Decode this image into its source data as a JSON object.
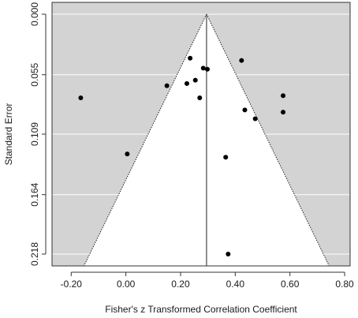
{
  "chart_data": {
    "type": "scatter",
    "subtype": "funnel-plot",
    "xlabel": "Fisher's z Transformed Correlation Coefficient",
    "ylabel": "Standard Error",
    "xlim": [
      -0.27,
      0.82
    ],
    "ylim": [
      0.0,
      0.218
    ],
    "y_reversed": true,
    "x_ticks": [
      -0.2,
      0.0,
      0.2,
      0.4,
      0.6,
      0.8
    ],
    "x_tick_labels": [
      "-0.20",
      "0.00",
      "0.20",
      "0.40",
      "0.60",
      "0.80"
    ],
    "y_ticks": [
      0.0,
      0.055,
      0.109,
      0.164,
      0.218
    ],
    "y_tick_labels": [
      "0.000",
      "0.055",
      "0.109",
      "0.164",
      "0.218"
    ],
    "grid": true,
    "background": "#d3d3d3",
    "funnel_fill": "#ffffff",
    "summary_effect": 0.295,
    "funnel_multiplier": 1.96,
    "points": [
      {
        "x": -0.165,
        "y": 0.076
      },
      {
        "x": 0.005,
        "y": 0.127
      },
      {
        "x": 0.15,
        "y": 0.065
      },
      {
        "x": 0.223,
        "y": 0.063
      },
      {
        "x": 0.235,
        "y": 0.04
      },
      {
        "x": 0.254,
        "y": 0.06
      },
      {
        "x": 0.27,
        "y": 0.076
      },
      {
        "x": 0.283,
        "y": 0.049
      },
      {
        "x": 0.298,
        "y": 0.05
      },
      {
        "x": 0.365,
        "y": 0.13
      },
      {
        "x": 0.374,
        "y": 0.218
      },
      {
        "x": 0.423,
        "y": 0.042
      },
      {
        "x": 0.435,
        "y": 0.087
      },
      {
        "x": 0.473,
        "y": 0.095
      },
      {
        "x": 0.575,
        "y": 0.074
      },
      {
        "x": 0.575,
        "y": 0.089
      }
    ]
  }
}
